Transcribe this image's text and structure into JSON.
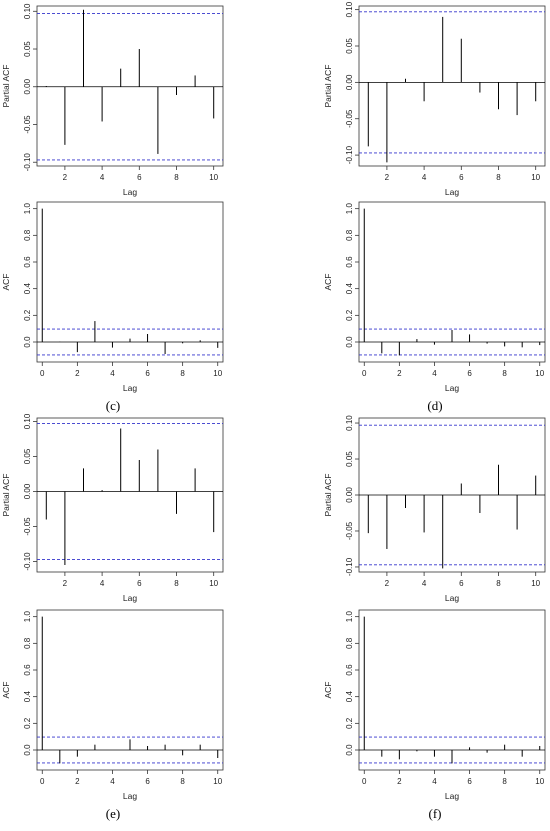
{
  "captions": [
    "(c)",
    "(d)",
    "(e)",
    "(f)"
  ],
  "chart_data": [
    {
      "type": "bar",
      "kind": "pacf",
      "xlabel": "Lag",
      "ylabel": "Partial ACF",
      "x": [
        1,
        2,
        3,
        4,
        5,
        6,
        7,
        8,
        9,
        10
      ],
      "values": [
        0.001,
        -0.077,
        0.102,
        -0.046,
        0.024,
        0.05,
        -0.089,
        -0.011,
        0.015,
        -0.042
      ],
      "ci": 0.097,
      "xlim": [
        0.5,
        10.5
      ],
      "ylim": [
        -0.105,
        0.107
      ],
      "xticks": [
        2,
        4,
        6,
        8,
        10
      ],
      "yticks": [
        -0.1,
        -0.05,
        0,
        0.05,
        0.1
      ],
      "ytick_labels": [
        "-0.10",
        "-0.05",
        "0.00",
        "0.05",
        "0.10"
      ],
      "grid": false
    },
    {
      "type": "bar",
      "kind": "pacf",
      "xlabel": "Lag",
      "ylabel": "Partial ACF",
      "x": [
        1,
        2,
        3,
        4,
        5,
        6,
        7,
        8,
        9,
        10
      ],
      "values": [
        -0.088,
        -0.11,
        0.005,
        -0.026,
        0.09,
        0.06,
        -0.014,
        -0.037,
        -0.045,
        -0.026
      ],
      "ci": 0.097,
      "xlim": [
        0.5,
        10.5
      ],
      "ylim": [
        -0.115,
        0.105
      ],
      "xticks": [
        2,
        4,
        6,
        8,
        10
      ],
      "yticks": [
        -0.1,
        -0.05,
        0,
        0.05,
        0.1
      ],
      "ytick_labels": [
        "-0.10",
        "-0.05",
        "0.00",
        "0.05",
        "0.10"
      ],
      "grid": false
    },
    {
      "type": "bar",
      "kind": "acf",
      "xlabel": "Lag",
      "ylabel": "ACF",
      "x": [
        0,
        1,
        2,
        3,
        4,
        5,
        6,
        7,
        8,
        9,
        10
      ],
      "values": [
        1.0,
        0.002,
        -0.076,
        0.157,
        -0.042,
        0.025,
        0.06,
        -0.09,
        -0.01,
        0.013,
        -0.044
      ],
      "ci": 0.097,
      "xlim": [
        -0.3,
        10.3
      ],
      "ylim": [
        -0.15,
        1.05
      ],
      "xticks": [
        0,
        2,
        4,
        6,
        8,
        10
      ],
      "yticks": [
        0,
        0.2,
        0.4,
        0.6,
        0.8,
        1.0
      ],
      "ytick_labels": [
        "0.0",
        "0.2",
        "0.4",
        "0.6",
        "0.8",
        "1.0"
      ],
      "grid": false
    },
    {
      "type": "bar",
      "kind": "acf",
      "xlabel": "Lag",
      "ylabel": "ACF",
      "x": [
        0,
        1,
        2,
        3,
        4,
        5,
        6,
        7,
        8,
        9,
        10
      ],
      "values": [
        1.0,
        -0.085,
        -0.1,
        0.022,
        -0.02,
        0.09,
        0.057,
        -0.012,
        -0.033,
        -0.04,
        -0.023
      ],
      "ci": 0.097,
      "xlim": [
        -0.3,
        10.3
      ],
      "ylim": [
        -0.15,
        1.05
      ],
      "xticks": [
        0,
        2,
        4,
        6,
        8,
        10
      ],
      "yticks": [
        0,
        0.2,
        0.4,
        0.6,
        0.8,
        1.0
      ],
      "ytick_labels": [
        "0.0",
        "0.2",
        "0.4",
        "0.6",
        "0.8",
        "1.0"
      ],
      "grid": false
    },
    {
      "type": "bar",
      "kind": "pacf",
      "xlabel": "Lag",
      "ylabel": "Partial ACF",
      "x": [
        1,
        2,
        3,
        4,
        5,
        6,
        7,
        8,
        9,
        10
      ],
      "values": [
        -0.04,
        -0.105,
        0.033,
        0.002,
        0.09,
        0.045,
        0.06,
        -0.032,
        0.033,
        -0.058
      ],
      "ci": 0.097,
      "xlim": [
        0.5,
        10.5
      ],
      "ylim": [
        -0.115,
        0.105
      ],
      "xticks": [
        2,
        4,
        6,
        8,
        10
      ],
      "yticks": [
        -0.1,
        -0.05,
        0,
        0.05,
        0.1
      ],
      "ytick_labels": [
        "-0.10",
        "-0.05",
        "0.00",
        "0.05",
        "0.10"
      ],
      "grid": false
    },
    {
      "type": "bar",
      "kind": "pacf",
      "xlabel": "Lag",
      "ylabel": "Partial ACF",
      "x": [
        1,
        2,
        3,
        4,
        5,
        6,
        7,
        8,
        9,
        10
      ],
      "values": [
        -0.053,
        -0.075,
        -0.018,
        -0.052,
        -0.102,
        0.016,
        -0.025,
        0.042,
        -0.048,
        0.027
      ],
      "ci": 0.097,
      "xlim": [
        0.5,
        10.5
      ],
      "ylim": [
        -0.107,
        0.107
      ],
      "xticks": [
        2,
        4,
        6,
        8,
        10
      ],
      "yticks": [
        -0.1,
        -0.05,
        0,
        0.05,
        0.1
      ],
      "ytick_labels": [
        "-0.10",
        "-0.05",
        "0.00",
        "0.05",
        "0.10"
      ],
      "grid": false
    },
    {
      "type": "bar",
      "kind": "acf",
      "xlabel": "Lag",
      "ylabel": "ACF",
      "x": [
        0,
        1,
        2,
        3,
        4,
        5,
        6,
        7,
        8,
        9,
        10
      ],
      "values": [
        1.0,
        -0.1,
        -0.05,
        0.04,
        0.0,
        0.08,
        0.03,
        0.04,
        -0.04,
        0.04,
        -0.06
      ],
      "ci": 0.097,
      "xlim": [
        -0.3,
        10.3
      ],
      "ylim": [
        -0.15,
        1.05
      ],
      "xticks": [
        0,
        2,
        4,
        6,
        8,
        10
      ],
      "yticks": [
        0,
        0.2,
        0.4,
        0.6,
        0.8,
        1.0
      ],
      "ytick_labels": [
        "0.0",
        "0.2",
        "0.4",
        "0.6",
        "0.8",
        "1.0"
      ],
      "grid": false
    },
    {
      "type": "bar",
      "kind": "acf",
      "xlabel": "Lag",
      "ylabel": "ACF",
      "x": [
        0,
        1,
        2,
        3,
        4,
        5,
        6,
        7,
        8,
        9,
        10
      ],
      "values": [
        1.0,
        -0.05,
        -0.07,
        -0.01,
        -0.05,
        -0.1,
        0.02,
        -0.02,
        0.04,
        -0.05,
        0.03
      ],
      "ci": 0.097,
      "xlim": [
        -0.3,
        10.3
      ],
      "ylim": [
        -0.15,
        1.05
      ],
      "xticks": [
        0,
        2,
        4,
        6,
        8,
        10
      ],
      "yticks": [
        0,
        0.2,
        0.4,
        0.6,
        0.8,
        1.0
      ],
      "ytick_labels": [
        "0.0",
        "0.2",
        "0.4",
        "0.6",
        "0.8",
        "1.0"
      ],
      "grid": false
    }
  ],
  "colors": {
    "ci_line": "#3333cc",
    "lag_line": "#000000",
    "axis": "#333333"
  }
}
